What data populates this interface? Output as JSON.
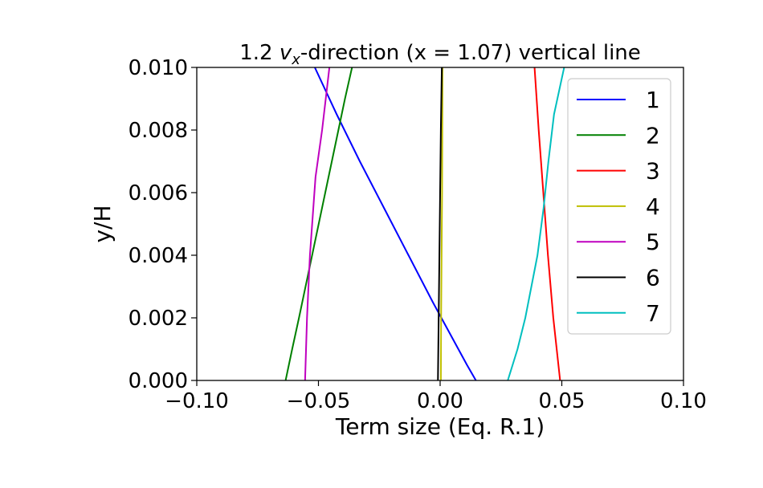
{
  "chart_data": {
    "type": "line",
    "title_prefix": "1.2 ",
    "title_var": "v",
    "title_sub": "x",
    "title_suffix": "-direction (x = 1.07) vertical line",
    "xlabel": "Term size (Eq. R.1)",
    "ylabel": "y/H",
    "xlim": [
      -0.1,
      0.1
    ],
    "ylim": [
      0.0,
      0.01
    ],
    "xticks": [
      -0.1,
      -0.05,
      0.0,
      0.05,
      0.1
    ],
    "xtick_labels": [
      "−0.10",
      "−0.05",
      "0.00",
      "0.05",
      "0.10"
    ],
    "yticks": [
      0.0,
      0.002,
      0.004,
      0.006,
      0.008,
      0.01
    ],
    "ytick_labels": [
      "0.000",
      "0.002",
      "0.004",
      "0.006",
      "0.008",
      "0.010"
    ],
    "grid": false,
    "legend_position": "upper right",
    "series": [
      {
        "name": "1",
        "color": "#0000ff",
        "points": [
          [
            0.0147,
            0.0
          ],
          [
            0.011,
            0.0005
          ],
          [
            0.0075,
            0.001
          ],
          [
            0.004,
            0.0015
          ],
          [
            0.0005,
            0.002
          ],
          [
            -0.003,
            0.0025
          ],
          [
            -0.013,
            0.004
          ],
          [
            -0.023,
            0.0055
          ],
          [
            -0.033,
            0.007
          ],
          [
            -0.0425,
            0.0085
          ],
          [
            -0.0515,
            0.01
          ]
        ]
      },
      {
        "name": "2",
        "color": "#008000",
        "points": [
          [
            -0.0635,
            0.0
          ],
          [
            -0.0608,
            0.001
          ],
          [
            -0.058,
            0.002
          ],
          [
            -0.0553,
            0.003
          ],
          [
            -0.0526,
            0.004
          ],
          [
            -0.0499,
            0.005
          ],
          [
            -0.0472,
            0.006
          ],
          [
            -0.0445,
            0.007
          ],
          [
            -0.0418,
            0.008
          ],
          [
            -0.0391,
            0.009
          ],
          [
            -0.0362,
            0.01
          ]
        ]
      },
      {
        "name": "3",
        "color": "#ff0000",
        "points": [
          [
            0.0493,
            0.0
          ],
          [
            0.0465,
            0.002
          ],
          [
            0.0443,
            0.004
          ],
          [
            0.0424,
            0.006
          ],
          [
            0.0405,
            0.008
          ],
          [
            0.0388,
            0.01
          ]
        ]
      },
      {
        "name": "4",
        "color": "#bfbf00",
        "points": [
          [
            0.0003,
            0.0
          ],
          [
            0.0004,
            0.002
          ],
          [
            0.0006,
            0.004
          ],
          [
            0.0008,
            0.006
          ],
          [
            0.0009,
            0.008
          ],
          [
            0.001,
            0.01
          ]
        ]
      },
      {
        "name": "5",
        "color": "#bf00bf",
        "points": [
          [
            -0.0555,
            0.0
          ],
          [
            -0.0547,
            0.002
          ],
          [
            -0.0535,
            0.004
          ],
          [
            -0.0512,
            0.0065
          ],
          [
            -0.0485,
            0.008
          ],
          [
            -0.0455,
            0.01
          ]
        ]
      },
      {
        "name": "6",
        "color": "#000000",
        "points": [
          [
            -0.0009,
            0.0
          ],
          [
            -0.0006,
            0.002
          ],
          [
            -0.0003,
            0.004
          ],
          [
            0.0,
            0.006
          ],
          [
            0.0003,
            0.008
          ],
          [
            0.0007,
            0.01
          ]
        ]
      },
      {
        "name": "7",
        "color": "#00bfbf",
        "points": [
          [
            0.0278,
            0.0
          ],
          [
            0.0318,
            0.001
          ],
          [
            0.035,
            0.002
          ],
          [
            0.0375,
            0.003
          ],
          [
            0.04,
            0.004
          ],
          [
            0.0425,
            0.0055
          ],
          [
            0.0445,
            0.007
          ],
          [
            0.0468,
            0.0085
          ],
          [
            0.0518,
            0.0103
          ]
        ]
      }
    ]
  }
}
